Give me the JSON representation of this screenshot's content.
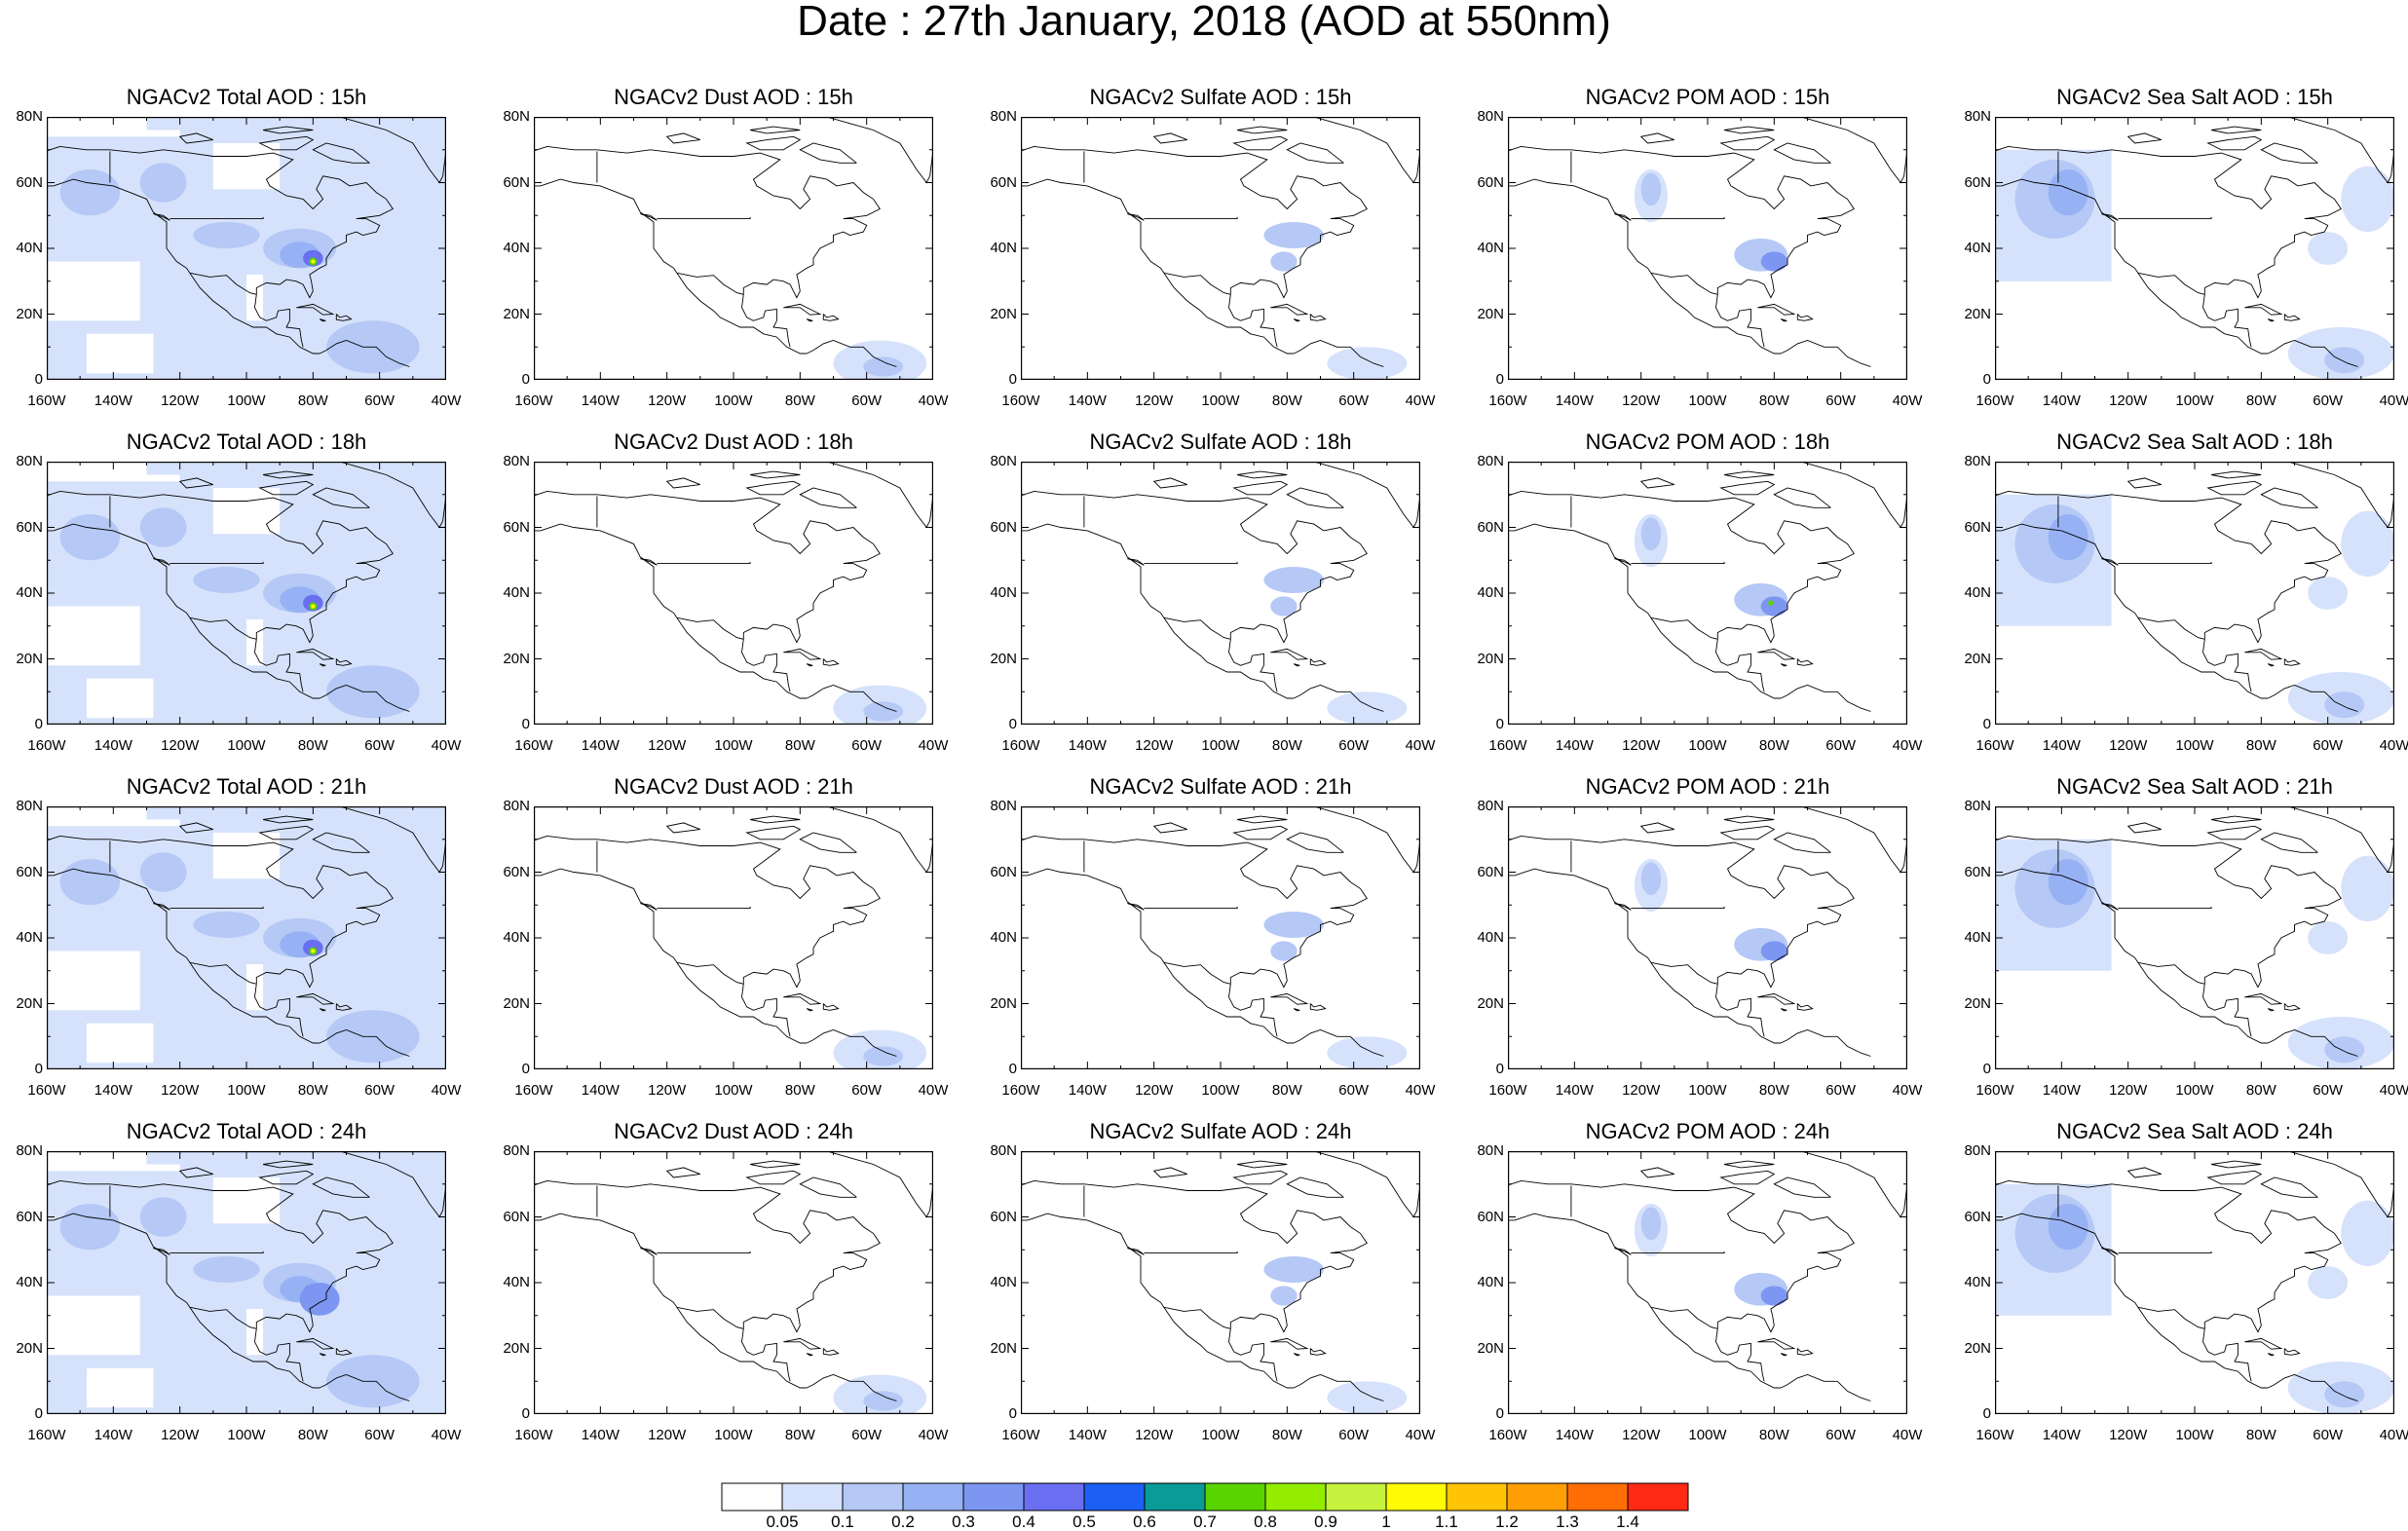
{
  "title": "Date : 27th January, 2018 (AOD at 550nm)",
  "lat_labels": [
    "80N",
    "60N",
    "40N",
    "20N",
    "0"
  ],
  "lon_labels": [
    "160W",
    "140W",
    "120W",
    "100W",
    "80W",
    "60W",
    "40W"
  ],
  "rows": [
    {
      "panels": [
        {
          "title": "NGACv2 Total AOD : 15h",
          "product": "total"
        },
        {
          "title": "NGACv2 Dust AOD : 15h",
          "product": "dust"
        },
        {
          "title": "NGACv2 Sulfate AOD : 15h",
          "product": "sulfate"
        },
        {
          "title": "NGACv2 POM AOD : 15h",
          "product": "pom"
        },
        {
          "title": "NGACv2 Sea Salt AOD : 15h",
          "product": "seasalt"
        }
      ]
    },
    {
      "panels": [
        {
          "title": "NGACv2 Total AOD : 18h",
          "product": "total"
        },
        {
          "title": "NGACv2 Dust AOD : 18h",
          "product": "dust"
        },
        {
          "title": "NGACv2 Sulfate AOD : 18h",
          "product": "sulfate"
        },
        {
          "title": "NGACv2 POM AOD : 18h",
          "product": "pom"
        },
        {
          "title": "NGACv2 Sea Salt AOD : 18h",
          "product": "seasalt"
        }
      ]
    },
    {
      "panels": [
        {
          "title": "NGACv2 Total AOD : 21h",
          "product": "total"
        },
        {
          "title": "NGACv2 Dust AOD : 21h",
          "product": "dust"
        },
        {
          "title": "NGACv2 Sulfate AOD : 21h",
          "product": "sulfate"
        },
        {
          "title": "NGACv2 POM AOD : 21h",
          "product": "pom"
        },
        {
          "title": "NGACv2 Sea Salt AOD : 21h",
          "product": "seasalt"
        }
      ]
    },
    {
      "panels": [
        {
          "title": "NGACv2 Total AOD : 24h",
          "product": "total"
        },
        {
          "title": "NGACv2 Dust AOD : 24h",
          "product": "dust"
        },
        {
          "title": "NGACv2 Sulfate AOD : 24h",
          "product": "sulfate"
        },
        {
          "title": "NGACv2 POM AOD : 24h",
          "product": "pom"
        },
        {
          "title": "NGACv2 Sea Salt  AOD : 24h",
          "product": "seasalt"
        }
      ]
    }
  ],
  "colorbar": {
    "colors": [
      "#ffffff",
      "#d6e2fb",
      "#b5c8f6",
      "#97b2f4",
      "#7d96f2",
      "#6a6ef0",
      "#1c5ff5",
      "#0a9b96",
      "#5ad400",
      "#94ec00",
      "#c6f23e",
      "#fffb05",
      "#ffc405",
      "#ff9e05",
      "#ff6e05",
      "#ff2a14"
    ],
    "ticks": [
      "0.05",
      "0.1",
      "0.2",
      "0.3",
      "0.4",
      "0.5",
      "0.6",
      "0.7",
      "0.8",
      "0.9",
      "1",
      "1.1",
      "1.2",
      "1.3",
      "1.4"
    ]
  }
}
